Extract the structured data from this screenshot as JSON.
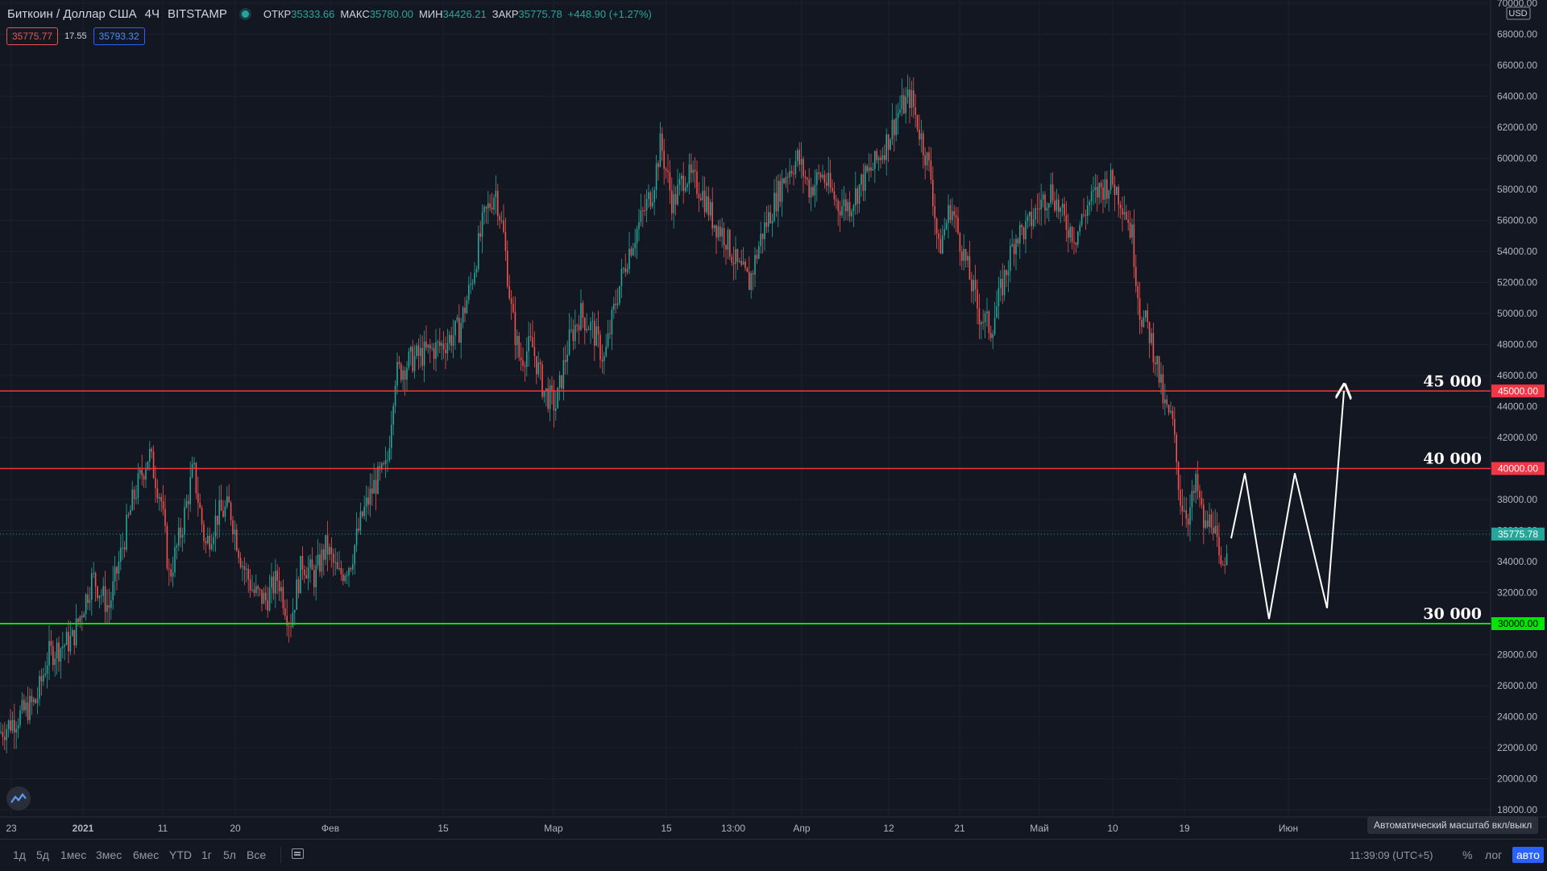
{
  "legend": {
    "symbol": "Биткоин / Доллар США",
    "interval": "4Ч",
    "exchange": "BITSTAMP",
    "open_label": "ОТКР",
    "open_value": "35333.66",
    "high_label": "МАКС",
    "high_value": "35780.00",
    "low_label": "МИН",
    "low_value": "34426.21",
    "close_label": "ЗАКР",
    "close_value": "35775.78",
    "change": "+448.90 (+1.27%)"
  },
  "quote": {
    "sell": "35775.77",
    "spread": "17.55",
    "buy": "35793.32"
  },
  "toolbar": {
    "timeframes": [
      "1д",
      "5д",
      "1мес",
      "3мес",
      "6мес",
      "YTD",
      "1г",
      "5л",
      "Все"
    ],
    "clock": "11:39:09 (UTC+5)",
    "percent": "%",
    "log": "лог",
    "auto": "авто",
    "tooltip": "Автоматический масштаб вкл/выкл"
  },
  "chart_data": {
    "type": "candlestick",
    "currency": "USD",
    "ylim": [
      18000,
      70000
    ],
    "y_ticks": [
      "18000.00",
      "20000.00",
      "22000.00",
      "24000.00",
      "26000.00",
      "28000.00",
      "30000.00",
      "32000.00",
      "34000.00",
      "36000.00",
      "38000.00",
      "40000.00",
      "42000.00",
      "44000.00",
      "46000.00",
      "48000.00",
      "50000.00",
      "52000.00",
      "54000.00",
      "56000.00",
      "58000.00",
      "60000.00",
      "62000.00",
      "64000.00",
      "66000.00",
      "68000.00",
      "70000.00"
    ],
    "x_ticks": [
      "23",
      "2021",
      "11",
      "20",
      "Фев",
      "15",
      "Мар",
      "15",
      "13:00",
      "Апр",
      "12",
      "21",
      "Май",
      "10",
      "19",
      "Июн"
    ],
    "last_price": {
      "value": 35775.78,
      "label": "35775.78",
      "color": "#26a69a"
    },
    "levels": [
      {
        "value": 45000,
        "label": "45 000",
        "axis_label": "45000.00",
        "color": "#f23645"
      },
      {
        "value": 40000,
        "label": "40 000",
        "axis_label": "40000.00",
        "color": "#f23645"
      },
      {
        "value": 30000,
        "label": "30 000",
        "axis_label": "30000.00",
        "color": "#00e600"
      }
    ],
    "price_path": [
      [
        0,
        23000
      ],
      [
        45,
        25000
      ],
      [
        60,
        28000
      ],
      [
        90,
        29000
      ],
      [
        115,
        33000
      ],
      [
        135,
        31000
      ],
      [
        165,
        38000
      ],
      [
        185,
        41000
      ],
      [
        200,
        38000
      ],
      [
        210,
        33000
      ],
      [
        225,
        36000
      ],
      [
        240,
        40000
      ],
      [
        255,
        35000
      ],
      [
        270,
        37000
      ],
      [
        285,
        37500
      ],
      [
        300,
        34000
      ],
      [
        315,
        32000
      ],
      [
        330,
        31500
      ],
      [
        345,
        33000
      ],
      [
        360,
        30000
      ],
      [
        375,
        34000
      ],
      [
        390,
        33000
      ],
      [
        405,
        35000
      ],
      [
        420,
        33000
      ],
      [
        435,
        34000
      ],
      [
        450,
        37000
      ],
      [
        465,
        39000
      ],
      [
        480,
        40000
      ],
      [
        490,
        46000
      ],
      [
        510,
        47000
      ],
      [
        530,
        47500
      ],
      [
        550,
        48000
      ],
      [
        570,
        49000
      ],
      [
        585,
        52000
      ],
      [
        600,
        56000
      ],
      [
        615,
        58000
      ],
      [
        625,
        55000
      ],
      [
        635,
        50000
      ],
      [
        645,
        47000
      ],
      [
        660,
        48000
      ],
      [
        675,
        45000
      ],
      [
        690,
        44000
      ],
      [
        705,
        48000
      ],
      [
        720,
        50000
      ],
      [
        735,
        49000
      ],
      [
        750,
        47000
      ],
      [
        765,
        51000
      ],
      [
        780,
        54000
      ],
      [
        795,
        56000
      ],
      [
        810,
        58000
      ],
      [
        820,
        61000
      ],
      [
        835,
        57000
      ],
      [
        850,
        59000
      ],
      [
        870,
        58000
      ],
      [
        885,
        56000
      ],
      [
        900,
        55000
      ],
      [
        915,
        53000
      ],
      [
        930,
        52000
      ],
      [
        945,
        55000
      ],
      [
        960,
        57000
      ],
      [
        975,
        59000
      ],
      [
        990,
        60000
      ],
      [
        1005,
        58000
      ],
      [
        1020,
        59000
      ],
      [
        1040,
        57000
      ],
      [
        1055,
        57000
      ],
      [
        1070,
        58500
      ],
      [
        1085,
        59500
      ],
      [
        1100,
        61000
      ],
      [
        1115,
        63000
      ],
      [
        1130,
        64000
      ],
      [
        1140,
        62000
      ],
      [
        1155,
        59000
      ],
      [
        1165,
        54000
      ],
      [
        1180,
        57000
      ],
      [
        1200,
        53000
      ],
      [
        1215,
        50000
      ],
      [
        1230,
        49000
      ],
      [
        1245,
        52000
      ],
      [
        1260,
        55000
      ],
      [
        1275,
        55500
      ],
      [
        1290,
        57000
      ],
      [
        1305,
        58000
      ],
      [
        1320,
        56000
      ],
      [
        1335,
        55000
      ],
      [
        1350,
        57000
      ],
      [
        1365,
        58000
      ],
      [
        1380,
        58500
      ],
      [
        1395,
        57000
      ],
      [
        1405,
        55000
      ],
      [
        1415,
        50000
      ],
      [
        1425,
        49000
      ],
      [
        1435,
        47000
      ],
      [
        1445,
        44000
      ],
      [
        1455,
        43000
      ],
      [
        1465,
        38000
      ],
      [
        1475,
        37000
      ],
      [
        1485,
        39000
      ],
      [
        1495,
        36000
      ],
      [
        1505,
        37000
      ],
      [
        1515,
        33000
      ],
      [
        1525,
        35775
      ]
    ],
    "projection": [
      [
        1528,
        35500
      ],
      [
        1545,
        39700
      ],
      [
        1575,
        30300
      ],
      [
        1607,
        39700
      ],
      [
        1647,
        31000
      ],
      [
        1668,
        45000
      ]
    ]
  }
}
